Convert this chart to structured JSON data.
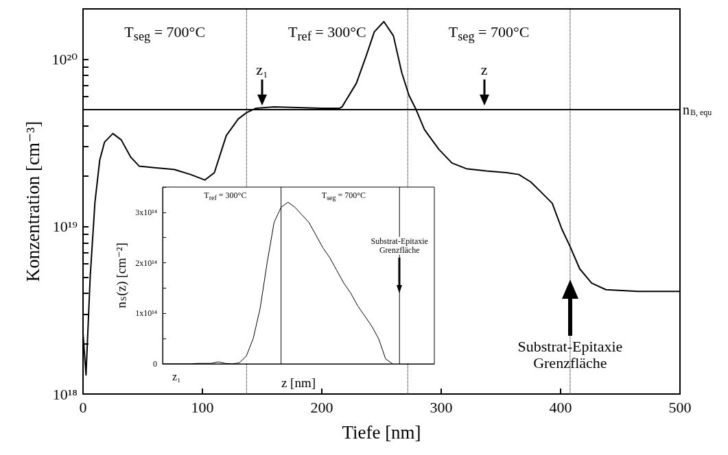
{
  "chart_data": [
    {
      "type": "line",
      "xlabel": "Tiefe [nm]",
      "ylabel": "Konzentration [cm⁻³]",
      "log": "y",
      "grid": false,
      "marker": "none",
      "line_style": "solid",
      "xlim": [
        0,
        500
      ],
      "xticks": [
        0,
        100,
        200,
        300,
        400,
        500
      ],
      "ylim": [
        1e+18,
        2e+20
      ],
      "yticks": [
        {
          "value": 1e+18,
          "label": "10¹⁸"
        },
        {
          "value": 2e+18,
          "label": null
        },
        {
          "value": 3e+18,
          "label": null
        },
        {
          "value": 4e+18,
          "label": null
        },
        {
          "value": 5e+18,
          "label": null
        },
        {
          "value": 6e+18,
          "label": null
        },
        {
          "value": 7e+18,
          "label": null
        },
        {
          "value": 8e+18,
          "label": null
        },
        {
          "value": 9e+18,
          "label": null
        },
        {
          "value": 1e+19,
          "label": "10¹⁹"
        },
        {
          "value": 2e+19,
          "label": null
        },
        {
          "value": 3e+19,
          "label": null
        },
        {
          "value": 4e+19,
          "label": null
        },
        {
          "value": 5e+19,
          "label": null
        },
        {
          "value": 6e+19,
          "label": null
        },
        {
          "value": 7e+19,
          "label": null
        },
        {
          "value": 8e+19,
          "label": null
        },
        {
          "value": 9e+19,
          "label": null
        },
        {
          "value": 1e+20,
          "label": "10²⁰"
        }
      ],
      "series": [
        {
          "color": "#000000",
          "x": [
            0,
            2.5,
            6,
            10,
            14,
            18,
            25,
            32,
            40,
            47,
            60,
            76,
            90,
            102,
            110,
            120,
            130,
            137,
            145,
            160,
            180,
            200,
            215,
            217,
            221,
            229,
            237,
            244,
            252,
            260,
            267,
            273,
            279,
            286,
            298,
            309,
            321,
            338,
            355,
            365,
            375,
            384,
            393,
            401,
            408,
            416,
            426,
            438,
            465,
            500
          ],
          "values": [
            2.3e+18,
            1.3e+18,
            5e+18,
            1.4e+19,
            2.5e+19,
            3.2e+19,
            3.6e+19,
            3.3e+19,
            2.6e+19,
            2.3e+19,
            2.25e+19,
            2.2e+19,
            2.05e+19,
            1.9e+19,
            2.1e+19,
            3.5e+19,
            4.4e+19,
            4.8e+19,
            5.1e+19,
            5.2e+19,
            5.15e+19,
            5.1e+19,
            5.1e+19,
            5.2e+19,
            5.8e+19,
            7.2e+19,
            1.04e+20,
            1.46e+20,
            1.68e+20,
            1.38e+20,
            8.3e+19,
            6.1e+19,
            5e+19,
            3.8e+19,
            2.9e+19,
            2.4e+19,
            2.22e+19,
            2.15e+19,
            2.1e+19,
            2.05e+19,
            1.85e+19,
            1.6e+19,
            1.38e+19,
            9.7e+18,
            7.6e+18,
            5.6e+18,
            4.6e+18,
            4.2e+18,
            4.1e+18,
            4.1e+18
          ]
        }
      ],
      "ref_lines": [
        {
          "axis": "y",
          "value": 5e+19,
          "label": "n$_{B, equ}$",
          "line_style": "solid",
          "color": "#000000"
        },
        {
          "axis": "x",
          "value": 137,
          "line_style": "dotted",
          "color": "#000000"
        },
        {
          "axis": "x",
          "value": 272,
          "line_style": "dotted",
          "color": "#000000"
        },
        {
          "axis": "x",
          "value": 408,
          "line_style": "dotted",
          "color": "#000000"
        }
      ],
      "annotations": [
        "T$_{seg}$ = 700°C",
        "T$_{ref}$ = 300°C",
        "T$_{seg}$ = 700°C",
        {
          "text": "z₁",
          "x": 150,
          "y": 5e+19
        },
        {
          "text": "z",
          "x": 336,
          "y": 5e+19
        },
        "Substrat-Epitaxie\nGrenzfläche"
      ]
    },
    {
      "type": "line",
      "xlabel": "z [nm]",
      "ylabel": "n$_{S}$(z) [cm⁻²]",
      "grid": false,
      "marker": "none",
      "line_style": "solid",
      "categories": [
        null,
        null,
        null,
        null,
        null,
        null,
        null,
        null,
        null,
        null,
        null,
        null,
        null,
        null,
        null,
        null,
        null,
        null,
        null,
        null,
        null,
        null,
        null,
        null,
        null,
        null,
        null,
        null,
        null,
        null,
        null,
        null,
        null,
        null,
        null,
        null,
        null,
        null,
        null,
        null
      ],
      "ylim": [
        0,
        350000000000000.0
      ],
      "yticks": [
        0,
        {
          "value": 50000000000000.0,
          "label": null
        },
        {
          "value": 100000000000000.0,
          "label": "1x10¹⁴"
        },
        {
          "value": 150000000000000.0,
          "label": null
        },
        {
          "value": 200000000000000.0,
          "label": "2x10¹⁴"
        },
        {
          "value": 250000000000000.0,
          "label": null
        },
        {
          "value": 300000000000000.0,
          "label": "3x10¹⁴"
        }
      ],
      "series": [
        {
          "color": "#000000",
          "values": [
            0,
            0,
            0,
            0,
            0,
            1000000000000.0,
            1000000000000.0,
            1000000000000.0,
            4000000000000.0,
            1000000000000.0,
            0,
            2000000000000.0,
            15000000000000.0,
            50000000000000.0,
            110000000000000.0,
            200000000000000.0,
            280000000000000.0,
            310000000000000.0,
            320000000000000.0,
            310000000000000.0,
            295000000000000.0,
            280000000000000.0,
            255000000000000.0,
            230000000000000.0,
            210000000000000.0,
            185000000000000.0,
            160000000000000.0,
            140000000000000.0,
            115000000000000.0,
            95000000000000.0,
            75000000000000.0,
            50000000000000.0,
            10000000000000.0,
            0,
            null,
            null,
            null,
            null,
            null,
            null
          ]
        }
      ],
      "annotations": [
        "T$_{ref}$ = 300°C",
        "T$_{seg}$ = 700°C",
        "Substrat-Epitaxie\nGrenzfläche",
        "z₁"
      ]
    }
  ]
}
